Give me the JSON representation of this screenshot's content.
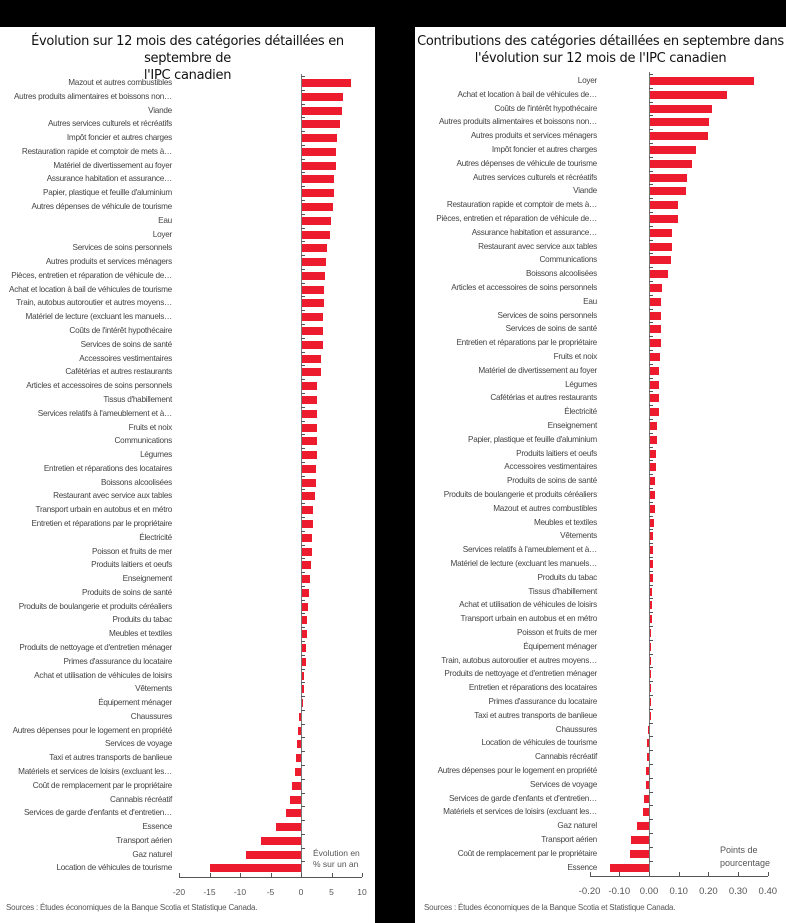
{
  "left": {
    "title_line1": "Évolution sur 12 mois des catégories détaillées en septembre de",
    "title_line2": "l'IPC canadien",
    "unit_line1": "Évolution en",
    "unit_line2": "% sur un an",
    "source": "Sources : Études économiques de la Banque Scotia et Statistique Canada.",
    "ticks": [
      "-20",
      "-15",
      "-10",
      "-5",
      "0",
      "5",
      "10"
    ]
  },
  "right": {
    "title_line1": "Contributions des catégories détaillées en septembre dans",
    "title_line2": "l'évolution sur 12 mois de l'IPC canadien",
    "unit_line1": "Points de",
    "unit_line2": "pourcentage",
    "source": "Sources : Études économiques de la Banque Scotia et Statistique Canada.",
    "ticks": [
      "-0.20",
      "-0.10",
      "0.00",
      "0.10",
      "0.20",
      "0.30",
      "0.40"
    ]
  },
  "colors": {
    "bar": "#ec1b2e",
    "axis": "#555555",
    "background": "#ffffff"
  },
  "chart_data": [
    {
      "type": "bar",
      "orientation": "horizontal",
      "title": "Évolution sur 12 mois des catégories détaillées en septembre de l'IPC canadien",
      "xlabel": "Évolution en % sur un an",
      "ylabel": "",
      "xlim": [
        -20,
        10
      ],
      "xticks": [
        -20,
        -15,
        -10,
        -5,
        0,
        5,
        10
      ],
      "grid": false,
      "legend": "none",
      "categories": [
        "Mazout et autres combustibles",
        "Autres produits alimentaires et boissons non…",
        "Viande",
        "Autres services culturels et récréatifs",
        "Impôt foncier et autres charges",
        "Restauration rapide et comptoir de mets à…",
        "Matériel de divertissement au foyer",
        "Assurance habitation et assurance…",
        "Papier, plastique et feuille d'aluminium",
        "Autres dépenses de véhicule de tourisme",
        "Eau",
        "Loyer",
        "Services de soins personnels",
        "Autres produits et services ménagers",
        "Pièces, entretien et réparation de véhicule de…",
        "Achat et location à bail de véhicules de tourisme",
        "Train, autobus autoroutier et autres moyens…",
        "Matériel de lecture (excluant les manuels…",
        "Coûts de l'intérêt hypothécaire",
        "Services de soins de santé",
        "Accessoires vestimentaires",
        "Cafétérias et autres restaurants",
        "Articles et accessoires de soins personnels",
        "Tissus d'habillement",
        "Services relatifs à l'ameublement et à…",
        "Fruits et noix",
        "Communications",
        "Légumes",
        "Entretien et réparations des locataires",
        "Boissons alcoolisées",
        "Restaurant avec service aux tables",
        "Transport urbain en autobus et en métro",
        "Entretien et réparations par le propriétaire",
        "Électricité",
        "Poisson et fruits de mer",
        "Produits laitiers et oeufs",
        "Enseignement",
        "Produits de soins de santé",
        "Produits de boulangerie et produits céréaliers",
        "Produits du tabac",
        "Meubles et textiles",
        "Produits de nettoyage et d'entretien ménager",
        "Primes d'assurance du locataire",
        "Achat et utilisation de véhicules de loisirs",
        "Vêtements",
        "Équipement ménager",
        "Chaussures",
        "Autres dépenses pour le logement en propriété",
        "Services de voyage",
        "Taxi et autres transports de banlieue",
        "Matériels et services de loisirs (excluant les…",
        "Coût de remplacement par le propriétaire",
        "Cannabis récréatif",
        "Services de garde d'enfants et d'entretien…",
        "Essence",
        "Transport aérien",
        "Gaz naturel",
        "Location de véhicules de tourisme"
      ],
      "values": [
        8.0,
        6.8,
        6.5,
        6.3,
        5.8,
        5.6,
        5.5,
        5.2,
        5.2,
        5.0,
        4.8,
        4.6,
        4.1,
        4.0,
        3.7,
        3.6,
        3.6,
        3.5,
        3.4,
        3.4,
        3.1,
        3.1,
        2.5,
        2.5,
        2.5,
        2.4,
        2.4,
        2.4,
        2.3,
        2.3,
        2.1,
        1.8,
        1.8,
        1.7,
        1.6,
        1.4,
        1.3,
        1.2,
        1.0,
        0.9,
        0.9,
        0.6,
        0.6,
        0.4,
        0.4,
        0.2,
        -0.3,
        -0.5,
        -0.6,
        -0.8,
        -1.0,
        -1.4,
        -1.8,
        -2.5,
        -4.1,
        -6.5,
        -9.0,
        -15.0
      ]
    },
    {
      "type": "bar",
      "orientation": "horizontal",
      "title": "Contributions des catégories détaillées en septembre dans l'évolution sur 12 mois de l'IPC canadien",
      "xlabel": "Points de pourcentage",
      "ylabel": "",
      "xlim": [
        -0.2,
        0.4
      ],
      "xticks": [
        -0.2,
        -0.1,
        0.0,
        0.1,
        0.2,
        0.3,
        0.4
      ],
      "grid": false,
      "legend": "none",
      "categories": [
        "Loyer",
        "Achat et location à bail de véhicules de…",
        "Coûts de l'intérêt hypothécaire",
        "Autres produits alimentaires et boissons non…",
        "Autres produits et services ménagers",
        "Impôt foncier et autres charges",
        "Autres dépenses de véhicule de tourisme",
        "Autres services culturels et récréatifs",
        "Viande",
        "Restauration rapide et comptoir de mets à…",
        "Pièces, entretien et réparation de véhicule de…",
        "Assurance habitation et assurance…",
        "Restaurant avec service aux tables",
        "Communications",
        "Boissons alcoolisées",
        "Articles et accessoires de soins personnels",
        "Eau",
        "Services de soins personnels",
        "Services de soins de santé",
        "Entretien et réparations par le propriétaire",
        "Fruits et noix",
        "Matériel de divertissement au foyer",
        "Légumes",
        "Cafétérias et autres restaurants",
        "Électricité",
        "Enseignement",
        "Papier, plastique et feuille d'aluminium",
        "Produits laitiers et oeufs",
        "Accessoires vestimentaires",
        "Produits de soins de santé",
        "Produits de boulangerie et produits céréaliers",
        "Mazout et autres combustibles",
        "Meubles et textiles",
        "Vêtements",
        "Services relatifs à l'ameublement et à…",
        "Matériel de lecture (excluant les manuels…",
        "Produits du tabac",
        "Tissus d'habillement",
        "Achat et utilisation de véhicules de loisirs",
        "Transport urbain en autobus et en métro",
        "Poisson et fruits de mer",
        "Équipement ménager",
        "Train, autobus autoroutier et autres moyens…",
        "Produits de nettoyage et d'entretien ménager",
        "Entretien et réparations des locataires",
        "Primes d'assurance du locataire",
        "Taxi et autres transports de banlieue",
        "Chaussures",
        "Location de véhicules de tourisme",
        "Cannabis récréatif",
        "Autres dépenses pour le logement en propriété",
        "Services de voyage",
        "Services de garde d'enfants et d'entretien…",
        "Matériels et services de loisirs (excluant les…",
        "Gaz naturel",
        "Transport aérien",
        "Coût de remplacement par le propriétaire",
        "Essence"
      ],
      "values": [
        0.35,
        0.26,
        0.21,
        0.2,
        0.195,
        0.155,
        0.14,
        0.125,
        0.12,
        0.095,
        0.095,
        0.075,
        0.073,
        0.071,
        0.059,
        0.042,
        0.038,
        0.036,
        0.036,
        0.036,
        0.035,
        0.029,
        0.029,
        0.029,
        0.029,
        0.025,
        0.025,
        0.021,
        0.021,
        0.018,
        0.018,
        0.018,
        0.015,
        0.011,
        0.011,
        0.011,
        0.011,
        0.008,
        0.008,
        0.006,
        0.005,
        0.004,
        0.003,
        0.002,
        0.001,
        0.001,
        0.0,
        -0.002,
        -0.008,
        -0.008,
        -0.009,
        -0.01,
        -0.017,
        -0.02,
        -0.042,
        -0.062,
        -0.064,
        -0.132
      ]
    }
  ]
}
